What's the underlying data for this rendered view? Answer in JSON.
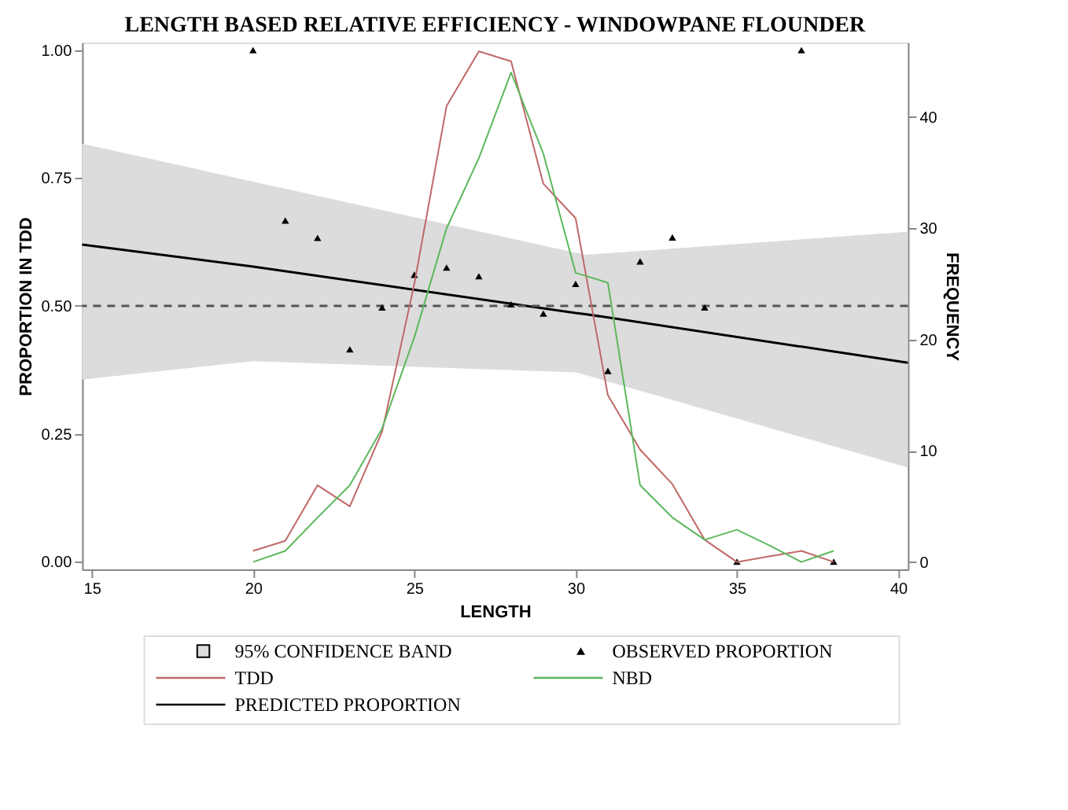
{
  "chart_data": {
    "type": "line",
    "title": "LENGTH BASED RELATIVE EFFICIENCY - WINDOWPANE FLOUNDER",
    "xlabel": "LENGTH",
    "ylabel": "PROPORTION IN TDD",
    "y2label": "FREQUENCY",
    "xlim": [
      14.7,
      40.3
    ],
    "xticks": [
      15,
      20,
      25,
      30,
      35,
      40
    ],
    "ylim": [
      -0.015,
      1.015
    ],
    "yticks": [
      {
        "value": 0,
        "label": "0.00"
      },
      {
        "value": 0.25,
        "label": "0.25"
      },
      {
        "value": 0.5,
        "label": "0.50"
      },
      {
        "value": 0.75,
        "label": "0.75"
      },
      {
        "value": 1,
        "label": "1.00"
      }
    ],
    "y2lim": [
      -0.66,
      46.7
    ],
    "y2ticks": [
      0,
      10,
      20,
      30,
      40
    ],
    "grid": false,
    "legend": "bottom",
    "annotations": [
      "95% CONFIDENCE BAND"
    ],
    "ref_lines": [
      {
        "axis": "y",
        "value": 0.5,
        "color": "#555555",
        "line_style": "dashed"
      }
    ],
    "series": [
      {
        "name": "OBSERVED PROPORTION",
        "type": "scatter",
        "marker": "triangle",
        "color": "#000000",
        "x": [
          20,
          21,
          22,
          23,
          24,
          25,
          26,
          27,
          28,
          29,
          30,
          31,
          32,
          33,
          34,
          35,
          37,
          38
        ],
        "values": [
          1.0,
          0.667,
          0.633,
          0.415,
          0.497,
          0.561,
          0.575,
          0.558,
          0.503,
          0.485,
          0.543,
          0.373,
          0.587,
          0.634,
          0.497,
          0.0,
          1.0,
          0.0
        ]
      },
      {
        "name": "TDD",
        "axis": "y2",
        "color": "#c06868",
        "x": [
          20,
          21,
          22,
          23,
          24,
          25,
          26,
          27,
          28,
          29,
          30,
          31,
          32,
          33,
          34,
          35,
          36,
          37,
          38
        ],
        "values": [
          1.0,
          1.9,
          6.9,
          5.0,
          11.7,
          25,
          41.0,
          45.9,
          45.0,
          34.0,
          30.9,
          15.0,
          10.1,
          7.0,
          2.0,
          0,
          0.5,
          1.0,
          0
        ]
      },
      {
        "name": "NBD",
        "axis": "y2",
        "color": "#5cb85c",
        "x": [
          20,
          21,
          22,
          23,
          24,
          25,
          26,
          27,
          28,
          29,
          30,
          31,
          32,
          33,
          34,
          35,
          36,
          37,
          38
        ],
        "values": [
          0,
          1.0,
          4.0,
          6.9,
          12.0,
          20.2,
          30.0,
          36.3,
          44.0,
          36.7,
          26.0,
          25.1,
          6.9,
          4.0,
          2.0,
          2.9,
          1.5,
          0,
          1.0
        ]
      },
      {
        "name": "PREDICTED PROPORTION",
        "color": "#000000",
        "x": [
          14.7,
          20,
          30,
          30.3,
          40.3
        ],
        "values": [
          0.62,
          0.577,
          0.486,
          0.484,
          0.389
        ],
        "lower": [
          0.356,
          0.392,
          0.37,
          0.365,
          0.184
        ],
        "upper": [
          0.817,
          0.743,
          0.604,
          0.6,
          0.645
        ]
      }
    ]
  }
}
